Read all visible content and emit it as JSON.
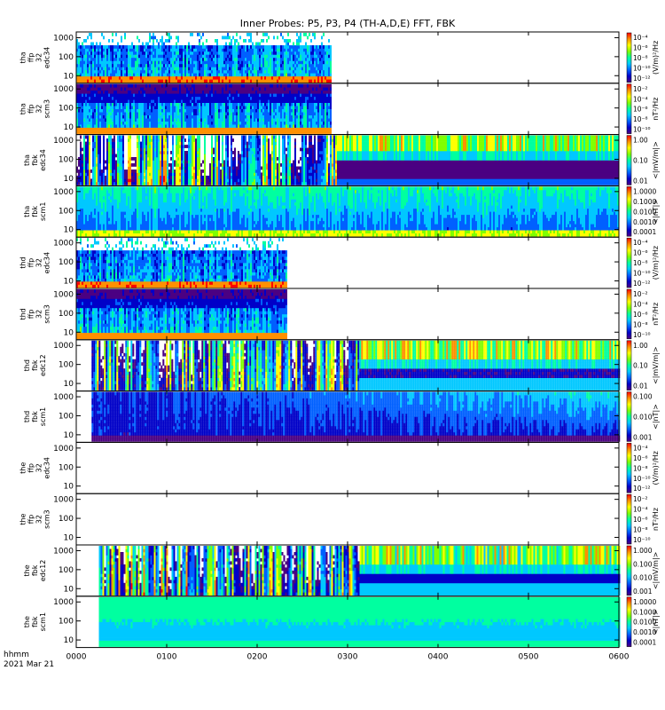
{
  "chart_data": {
    "type": "heatmap",
    "title": "Inner Probes: P5, P3, P4 (TH-A,D,E) FFT, FBK",
    "x_axis": {
      "ticks": [
        "0000",
        "0100",
        "0200",
        "0300",
        "0400",
        "0500",
        "0600"
      ],
      "label_line1": "hhmm",
      "label_line2": "2021 Mar 21",
      "range_hours": [
        0,
        6
      ]
    },
    "y_axis": {
      "scale": "log",
      "ticks": [
        "10",
        "100",
        "1000"
      ],
      "range_hz": [
        4,
        2000
      ]
    },
    "panels": [
      {
        "label": [
          "tha",
          "ffp",
          "32",
          "edc34"
        ],
        "type": "ffp_e",
        "data_start_hour": 0.0,
        "data_end_hour": 2.82,
        "colorbar": {
          "label": "(V/m)²/Hz",
          "ticks": [
            "10⁻⁴",
            "10⁻⁶",
            "10⁻⁸",
            "10⁻¹⁰",
            "10⁻¹²"
          ]
        }
      },
      {
        "label": [
          "tha",
          "ffp",
          "32",
          "scm3"
        ],
        "type": "ffp_b",
        "data_start_hour": 0.0,
        "data_end_hour": 2.82,
        "colorbar": {
          "label": "nT²/Hz",
          "ticks": [
            "10⁻²",
            "10⁻⁴",
            "10⁻⁶",
            "10⁻⁸",
            "10⁻¹⁰"
          ]
        }
      },
      {
        "label": [
          "tha",
          "fbk",
          "edc34"
        ],
        "type": "fbk_e_a",
        "data_start_hour": 0.0,
        "data_end_hour": 6.0,
        "colorbar": {
          "label": "<|mV/m|>",
          "ticks": [
            "1.00",
            "0.10",
            "0.01"
          ]
        }
      },
      {
        "label": [
          "tha",
          "fbk",
          "scm1"
        ],
        "type": "fbk_b_a",
        "data_start_hour": 0.0,
        "data_end_hour": 6.0,
        "colorbar": {
          "label": "<|nT|>",
          "ticks": [
            "1.0000",
            "0.1000",
            "0.0100",
            "0.0010",
            "0.0001"
          ]
        }
      },
      {
        "label": [
          "thd",
          "ffp",
          "32",
          "edc34"
        ],
        "type": "ffp_e",
        "data_start_hour": 0.0,
        "data_end_hour": 2.32,
        "colorbar": {
          "label": "(V/m)²/Hz",
          "ticks": [
            "10⁻⁴",
            "10⁻⁶",
            "10⁻⁸",
            "10⁻¹⁰",
            "10⁻¹²"
          ]
        }
      },
      {
        "label": [
          "thd",
          "ffp",
          "32",
          "scm3"
        ],
        "type": "ffp_b",
        "data_start_hour": 0.0,
        "data_end_hour": 2.32,
        "colorbar": {
          "label": "nT²/Hz",
          "ticks": [
            "10⁻²",
            "10⁻⁴",
            "10⁻⁶",
            "10⁻⁸",
            "10⁻¹⁰"
          ]
        }
      },
      {
        "label": [
          "thd",
          "fbk",
          "edc12"
        ],
        "type": "fbk_e_d",
        "data_start_hour": 0.17,
        "data_end_hour": 6.0,
        "colorbar": {
          "label": "<|mV/m|>",
          "ticks": [
            "1.00",
            "0.10",
            "0.01"
          ]
        }
      },
      {
        "label": [
          "thd",
          "fbk",
          "scm1"
        ],
        "type": "fbk_b_d",
        "data_start_hour": 0.17,
        "data_end_hour": 6.0,
        "colorbar": {
          "label": "<|nT|>",
          "ticks": [
            "0.100",
            "0.010",
            "0.001"
          ]
        }
      },
      {
        "label": [
          "the",
          "ffp",
          "32",
          "edc34"
        ],
        "type": "empty",
        "data_start_hour": 0.0,
        "data_end_hour": 0.0,
        "colorbar": {
          "label": "(V/m)²/Hz",
          "ticks": [
            "10⁻⁴",
            "10⁻⁶",
            "10⁻⁸",
            "10⁻¹⁰",
            "10⁻¹²"
          ]
        }
      },
      {
        "label": [
          "the",
          "ffp",
          "32",
          "scm3"
        ],
        "type": "empty",
        "data_start_hour": 0.0,
        "data_end_hour": 0.0,
        "colorbar": {
          "label": "nT²/Hz",
          "ticks": [
            "10⁻²",
            "10⁻⁴",
            "10⁻⁶",
            "10⁻⁸",
            "10⁻¹⁰"
          ]
        }
      },
      {
        "label": [
          "the",
          "fbk",
          "edc12"
        ],
        "type": "fbk_e_e",
        "data_start_hour": 0.25,
        "data_end_hour": 6.0,
        "colorbar": {
          "label": "<|mV/m|>",
          "ticks": [
            "1.000",
            "0.100",
            "0.010",
            "0.001"
          ]
        }
      },
      {
        "label": [
          "the",
          "fbk",
          "scm1"
        ],
        "type": "fbk_b_e",
        "data_start_hour": 0.25,
        "data_end_hour": 6.0,
        "colorbar": {
          "label": "<|nT|>",
          "ticks": [
            "1.0000",
            "0.1000",
            "0.0100",
            "0.0010",
            "0.0001"
          ]
        }
      }
    ],
    "colormap": [
      "#4b0082",
      "#0000c8",
      "#0060ff",
      "#00c8ff",
      "#00ffa0",
      "#80ff00",
      "#ffff00",
      "#ff9000",
      "#ff0000"
    ]
  }
}
